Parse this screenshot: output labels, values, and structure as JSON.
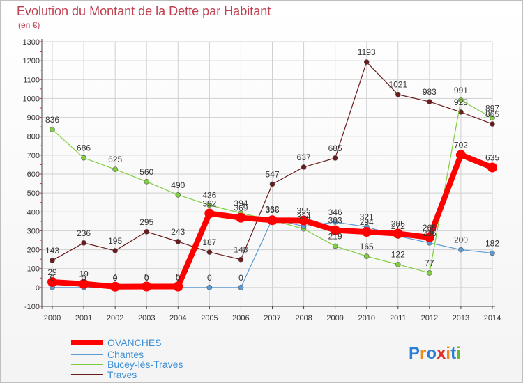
{
  "chart_data": {
    "type": "line",
    "title": "Evolution du Montant de la Dette par Habitant",
    "subtitle": "(en €)",
    "xlabel": "",
    "ylabel": "",
    "x": [
      "2000",
      "2001",
      "2002",
      "2003",
      "2004",
      "2005",
      "2006",
      "2007",
      "2008",
      "2009",
      "2010",
      "2011",
      "2012",
      "2013",
      "2014"
    ],
    "y_ticks": [
      "-100",
      "0",
      "100",
      "200",
      "300",
      "400",
      "500",
      "600",
      "700",
      "800",
      "900",
      "1000",
      "1100",
      "1200",
      "1300"
    ],
    "ylim": [
      -100,
      1300
    ],
    "grid": true,
    "legend_position": "bottom-left",
    "series": [
      {
        "name": "OVANCHES",
        "color": "#ff0000",
        "values": [
          29,
          19,
          4,
          5,
          5,
          392,
          369,
          356,
          355,
          303,
          294,
          285,
          265,
          702,
          635
        ],
        "labels": [
          "29",
          "19",
          "4",
          "5",
          "5",
          "392",
          "369",
          "356",
          "355",
          "303",
          "294",
          "285",
          "265",
          "702",
          "635"
        ]
      },
      {
        "name": "Chantes",
        "color": "#5b9bd5",
        "values": [
          0,
          0,
          0,
          0,
          0,
          0,
          0,
          362,
          324,
          346,
          321,
          272,
          236,
          200,
          182
        ],
        "labels": [
          "0",
          "0",
          "0",
          "0",
          "0",
          "0",
          "0",
          "362",
          "324",
          "346",
          "321",
          "272",
          "236",
          "200",
          "182"
        ]
      },
      {
        "name": "Bucey-lès-Traves",
        "color": "#7fce3f",
        "values": [
          836,
          686,
          625,
          560,
          490,
          436,
          394,
          356,
          310,
          219,
          165,
          122,
          77,
          991,
          897
        ],
        "labels": [
          "836",
          "686",
          "625",
          "560",
          "490",
          "436",
          "394",
          "",
          "",
          "219",
          "165",
          "122",
          "77",
          "991",
          "897"
        ]
      },
      {
        "name": "Traves",
        "color": "#6b1b1b",
        "values": [
          143,
          236,
          195,
          295,
          243,
          187,
          148,
          547,
          637,
          685,
          1193,
          1021,
          983,
          928,
          865
        ],
        "labels": [
          "143",
          "236",
          "195",
          "295",
          "243",
          "187",
          "148",
          "547",
          "637",
          "685",
          "1193",
          "1021",
          "983",
          "928",
          "865"
        ]
      }
    ]
  },
  "branding": {
    "logo_text": "Proxiti"
  }
}
